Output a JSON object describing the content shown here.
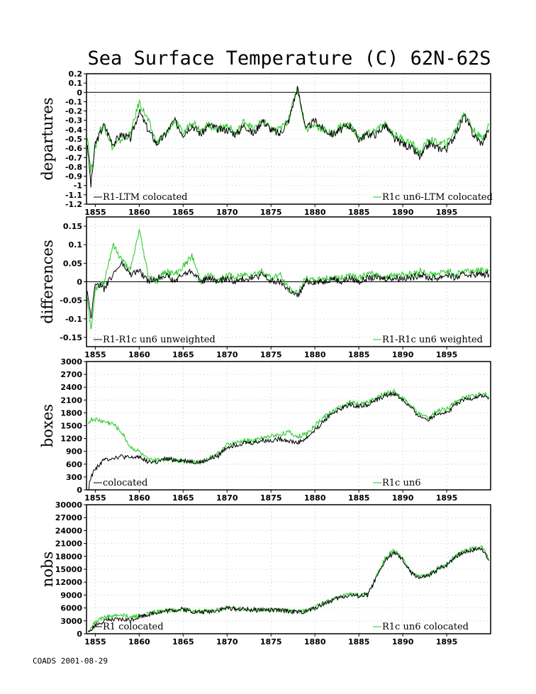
{
  "title": "Sea Surface Temperature (C) 62N-62S",
  "footer": "COADS 2001-08-29",
  "colors": {
    "series_a": "#000000",
    "series_b": "#22c922",
    "grid": "#b8b8b8"
  },
  "chart_data": [
    {
      "type": "line",
      "ylabel": "departures",
      "xlim": [
        1854,
        1900
      ],
      "ylim": [
        -1.2,
        0.2
      ],
      "yticks": [
        "0.2",
        "0.1",
        "0",
        "-0.1",
        "-0.2",
        "-0.3",
        "-0.4",
        "-0.5",
        "-0.6",
        "-0.7",
        "-0.8",
        "-0.9",
        "-1",
        "-1.1",
        "-1.2"
      ],
      "xticks": [
        "1855",
        "1860",
        "1865",
        "1870",
        "1875",
        "1880",
        "1885",
        "1890",
        "1895"
      ],
      "zero_line": 0,
      "grid": true,
      "legend_left": "R1-LTM colocated",
      "legend_right": "R1c un6-LTM colocated",
      "series": [
        {
          "x": [
            1854.1,
            1854.5,
            1855,
            1855.5,
            1856,
            1857,
            1858,
            1859,
            1860,
            1861,
            1862,
            1863,
            1864,
            1865,
            1866,
            1867,
            1868,
            1869,
            1870,
            1871,
            1872,
            1873,
            1874,
            1875,
            1876,
            1877,
            1878,
            1879,
            1880,
            1881,
            1882,
            1883,
            1884,
            1885,
            1886,
            1887,
            1888,
            1889,
            1890,
            1891,
            1892,
            1893,
            1894,
            1895,
            1896,
            1897,
            1898,
            1899,
            1899.8
          ],
          "values": [
            -0.55,
            -1.0,
            -0.55,
            -0.45,
            -0.35,
            -0.55,
            -0.45,
            -0.5,
            -0.2,
            -0.4,
            -0.55,
            -0.45,
            -0.3,
            -0.45,
            -0.35,
            -0.45,
            -0.35,
            -0.4,
            -0.4,
            -0.45,
            -0.35,
            -0.45,
            -0.3,
            -0.4,
            -0.45,
            -0.3,
            0.05,
            -0.4,
            -0.3,
            -0.4,
            -0.45,
            -0.4,
            -0.35,
            -0.5,
            -0.45,
            -0.45,
            -0.35,
            -0.5,
            -0.55,
            -0.6,
            -0.7,
            -0.55,
            -0.6,
            -0.6,
            -0.45,
            -0.25,
            -0.45,
            -0.55,
            -0.4
          ]
        },
        {
          "x": [
            1854.1,
            1854.5,
            1855,
            1855.5,
            1856,
            1857,
            1858,
            1859,
            1860,
            1861,
            1862,
            1863,
            1864,
            1865,
            1866,
            1867,
            1868,
            1869,
            1870,
            1871,
            1872,
            1873,
            1874,
            1875,
            1876,
            1877,
            1878,
            1879,
            1880,
            1881,
            1882,
            1883,
            1884,
            1885,
            1886,
            1887,
            1888,
            1889,
            1890,
            1891,
            1892,
            1893,
            1894,
            1895,
            1896,
            1897,
            1898,
            1899,
            1899.8
          ],
          "values": [
            -0.45,
            -0.85,
            -0.6,
            -0.4,
            -0.35,
            -0.6,
            -0.5,
            -0.45,
            -0.1,
            -0.3,
            -0.55,
            -0.45,
            -0.3,
            -0.45,
            -0.3,
            -0.4,
            -0.35,
            -0.4,
            -0.35,
            -0.45,
            -0.3,
            -0.4,
            -0.3,
            -0.4,
            -0.4,
            -0.3,
            0.05,
            -0.4,
            -0.35,
            -0.4,
            -0.45,
            -0.35,
            -0.35,
            -0.5,
            -0.45,
            -0.4,
            -0.35,
            -0.45,
            -0.5,
            -0.55,
            -0.65,
            -0.5,
            -0.55,
            -0.55,
            -0.4,
            -0.2,
            -0.4,
            -0.5,
            -0.35
          ]
        }
      ]
    },
    {
      "type": "line",
      "ylabel": "differences",
      "xlim": [
        1854,
        1900
      ],
      "ylim": [
        -0.175,
        0.175
      ],
      "yticks": [
        "0.15",
        "0.1",
        "0.05",
        "0",
        "-0.05",
        "-0.1",
        "-0.15"
      ],
      "xticks": [
        "1855",
        "1860",
        "1865",
        "1870",
        "1875",
        "1880",
        "1885",
        "1890",
        "1895"
      ],
      "zero_line": 0,
      "grid": true,
      "legend_left": "R1-R1c un6 unweighted",
      "legend_right": "R1-R1c un6 weighted",
      "series": [
        {
          "x": [
            1854.1,
            1854.5,
            1855,
            1856,
            1857,
            1858,
            1859,
            1860,
            1861,
            1862,
            1863,
            1864,
            1865,
            1866,
            1867,
            1868,
            1869,
            1870,
            1871,
            1872,
            1873,
            1874,
            1875,
            1876,
            1877,
            1878,
            1879,
            1880,
            1881,
            1882,
            1883,
            1884,
            1885,
            1886,
            1887,
            1888,
            1889,
            1890,
            1891,
            1892,
            1893,
            1894,
            1895,
            1896,
            1897,
            1898,
            1899,
            1899.8
          ],
          "values": [
            -0.02,
            -0.1,
            0.0,
            -0.02,
            0.02,
            0.05,
            0.02,
            0.03,
            0.0,
            0.01,
            0.02,
            0.0,
            0.02,
            0.03,
            0.0,
            0.01,
            0.0,
            0.01,
            0.0,
            0.01,
            0.01,
            0.02,
            0.0,
            0.0,
            -0.02,
            -0.04,
            0.0,
            0.0,
            0.0,
            0.01,
            0.0,
            0.01,
            0.0,
            0.01,
            0.01,
            0.01,
            0.01,
            0.01,
            0.01,
            0.02,
            0.01,
            0.01,
            0.02,
            0.01,
            0.02,
            0.02,
            0.02,
            0.02
          ]
        },
        {
          "x": [
            1854.1,
            1854.5,
            1855,
            1856,
            1857,
            1858,
            1859,
            1860,
            1861,
            1862,
            1863,
            1864,
            1865,
            1866,
            1867,
            1868,
            1869,
            1870,
            1871,
            1872,
            1873,
            1874,
            1875,
            1876,
            1877,
            1878,
            1879,
            1880,
            1881,
            1882,
            1883,
            1884,
            1885,
            1886,
            1887,
            1888,
            1889,
            1890,
            1891,
            1892,
            1893,
            1894,
            1895,
            1896,
            1897,
            1898,
            1899,
            1899.8
          ],
          "values": [
            -0.05,
            -0.13,
            -0.02,
            0.0,
            0.1,
            0.06,
            0.03,
            0.14,
            0.02,
            0.0,
            0.03,
            0.02,
            0.04,
            0.07,
            0.0,
            0.02,
            0.0,
            0.02,
            0.01,
            0.02,
            0.02,
            0.03,
            0.01,
            0.02,
            -0.02,
            -0.03,
            0.01,
            0.0,
            0.01,
            0.01,
            0.01,
            0.02,
            0.01,
            0.02,
            0.02,
            0.01,
            0.02,
            0.02,
            0.02,
            0.03,
            0.02,
            0.02,
            0.03,
            0.02,
            0.03,
            0.03,
            0.03,
            0.03
          ]
        }
      ]
    },
    {
      "type": "line",
      "ylabel": "boxes",
      "xlim": [
        1854,
        1900
      ],
      "ylim": [
        0,
        3000
      ],
      "yticks": [
        "3000",
        "2700",
        "2400",
        "2100",
        "1800",
        "1500",
        "1200",
        "900",
        "600",
        "300",
        "0"
      ],
      "xticks": [
        "1855",
        "1860",
        "1865",
        "1870",
        "1875",
        "1880",
        "1885",
        "1890",
        "1895"
      ],
      "zero_line": null,
      "grid": true,
      "legend_left": "colocated",
      "legend_right": "R1c un6",
      "series": [
        {
          "x": [
            1854.2,
            1854.5,
            1855,
            1856,
            1857,
            1858,
            1859,
            1860,
            1861,
            1862,
            1863,
            1864,
            1865,
            1866,
            1867,
            1868,
            1869,
            1870,
            1871,
            1872,
            1873,
            1874,
            1875,
            1876,
            1877,
            1878,
            1879,
            1880,
            1881,
            1882,
            1883,
            1884,
            1885,
            1886,
            1887,
            1888,
            1889,
            1890,
            1891,
            1892,
            1893,
            1894,
            1895,
            1896,
            1897,
            1898,
            1899,
            1899.8
          ],
          "values": [
            0,
            300,
            500,
            700,
            750,
            780,
            740,
            780,
            660,
            640,
            720,
            700,
            680,
            660,
            640,
            720,
            800,
            1000,
            1050,
            1100,
            1100,
            1150,
            1150,
            1200,
            1150,
            1100,
            1200,
            1400,
            1600,
            1800,
            1900,
            2000,
            1950,
            2000,
            2100,
            2200,
            2250,
            2100,
            1900,
            1700,
            1650,
            1800,
            1800,
            2000,
            2100,
            2150,
            2200,
            2150
          ]
        },
        {
          "x": [
            1854.2,
            1854.5,
            1855,
            1856,
            1857,
            1858,
            1859,
            1860,
            1861,
            1862,
            1863,
            1864,
            1865,
            1866,
            1867,
            1868,
            1869,
            1870,
            1871,
            1872,
            1873,
            1874,
            1875,
            1876,
            1877,
            1878,
            1879,
            1880,
            1881,
            1882,
            1883,
            1884,
            1885,
            1886,
            1887,
            1888,
            1889,
            1890,
            1891,
            1892,
            1893,
            1894,
            1895,
            1896,
            1897,
            1898,
            1899,
            1899.8
          ],
          "values": [
            1550,
            1650,
            1650,
            1600,
            1550,
            1350,
            1000,
            900,
            700,
            700,
            720,
            700,
            680,
            660,
            660,
            740,
            850,
            1050,
            1100,
            1150,
            1150,
            1200,
            1250,
            1300,
            1350,
            1250,
            1300,
            1500,
            1700,
            1850,
            1950,
            2050,
            2000,
            2050,
            2150,
            2250,
            2300,
            2150,
            1950,
            1750,
            1700,
            1850,
            1900,
            2050,
            2150,
            2200,
            2250,
            2200
          ]
        }
      ]
    },
    {
      "type": "line",
      "ylabel": "nobs",
      "xlim": [
        1854,
        1900
      ],
      "ylim": [
        0,
        30000
      ],
      "yticks": [
        "30000",
        "27000",
        "24000",
        "21000",
        "18000",
        "15000",
        "12000",
        "9000",
        "6000",
        "3000",
        "0"
      ],
      "xticks": [
        "1855",
        "1860",
        "1865",
        "1870",
        "1875",
        "1880",
        "1885",
        "1890",
        "1895"
      ],
      "zero_line": null,
      "grid": true,
      "legend_left": "R1 colocated",
      "legend_right": "R1c un6 colocated",
      "series": [
        {
          "x": [
            1854.2,
            1854.5,
            1855,
            1856,
            1857,
            1858,
            1859,
            1860,
            1861,
            1862,
            1863,
            1864,
            1865,
            1866,
            1867,
            1868,
            1869,
            1870,
            1871,
            1872,
            1873,
            1874,
            1875,
            1876,
            1877,
            1878,
            1879,
            1880,
            1881,
            1882,
            1883,
            1884,
            1885,
            1886,
            1887,
            1888,
            1889,
            1890,
            1891,
            1892,
            1893,
            1894,
            1895,
            1896,
            1897,
            1898,
            1899,
            1899.8
          ],
          "values": [
            0,
            1000,
            2000,
            3000,
            3200,
            3300,
            3200,
            4000,
            4500,
            5000,
            5300,
            5500,
            5700,
            5200,
            5000,
            5200,
            5500,
            6000,
            5800,
            5700,
            5500,
            5600,
            5500,
            5400,
            5300,
            5000,
            5200,
            6000,
            7000,
            7800,
            8500,
            9000,
            8800,
            9000,
            13000,
            17000,
            19000,
            17000,
            14000,
            13000,
            13500,
            15000,
            16000,
            18000,
            19000,
            19500,
            20000,
            17000
          ]
        },
        {
          "x": [
            1854.2,
            1854.5,
            1855,
            1856,
            1857,
            1858,
            1859,
            1860,
            1861,
            1862,
            1863,
            1864,
            1865,
            1866,
            1867,
            1868,
            1869,
            1870,
            1871,
            1872,
            1873,
            1874,
            1875,
            1876,
            1877,
            1878,
            1879,
            1880,
            1881,
            1882,
            1883,
            1884,
            1885,
            1886,
            1887,
            1888,
            1889,
            1890,
            1891,
            1892,
            1893,
            1894,
            1895,
            1896,
            1897,
            1898,
            1899,
            1899.8
          ],
          "values": [
            500,
            1500,
            2800,
            3800,
            4100,
            4300,
            3900,
            4200,
            4600,
            5100,
            5400,
            5600,
            5800,
            5300,
            5100,
            5300,
            5600,
            6100,
            5900,
            5800,
            5600,
            5700,
            5600,
            5500,
            5400,
            5100,
            5300,
            6100,
            7100,
            7900,
            8600,
            9100,
            8900,
            9100,
            13200,
            17500,
            19500,
            17300,
            14200,
            13200,
            13700,
            15200,
            16200,
            18200,
            19200,
            19700,
            20300,
            17300
          ]
        }
      ]
    }
  ]
}
